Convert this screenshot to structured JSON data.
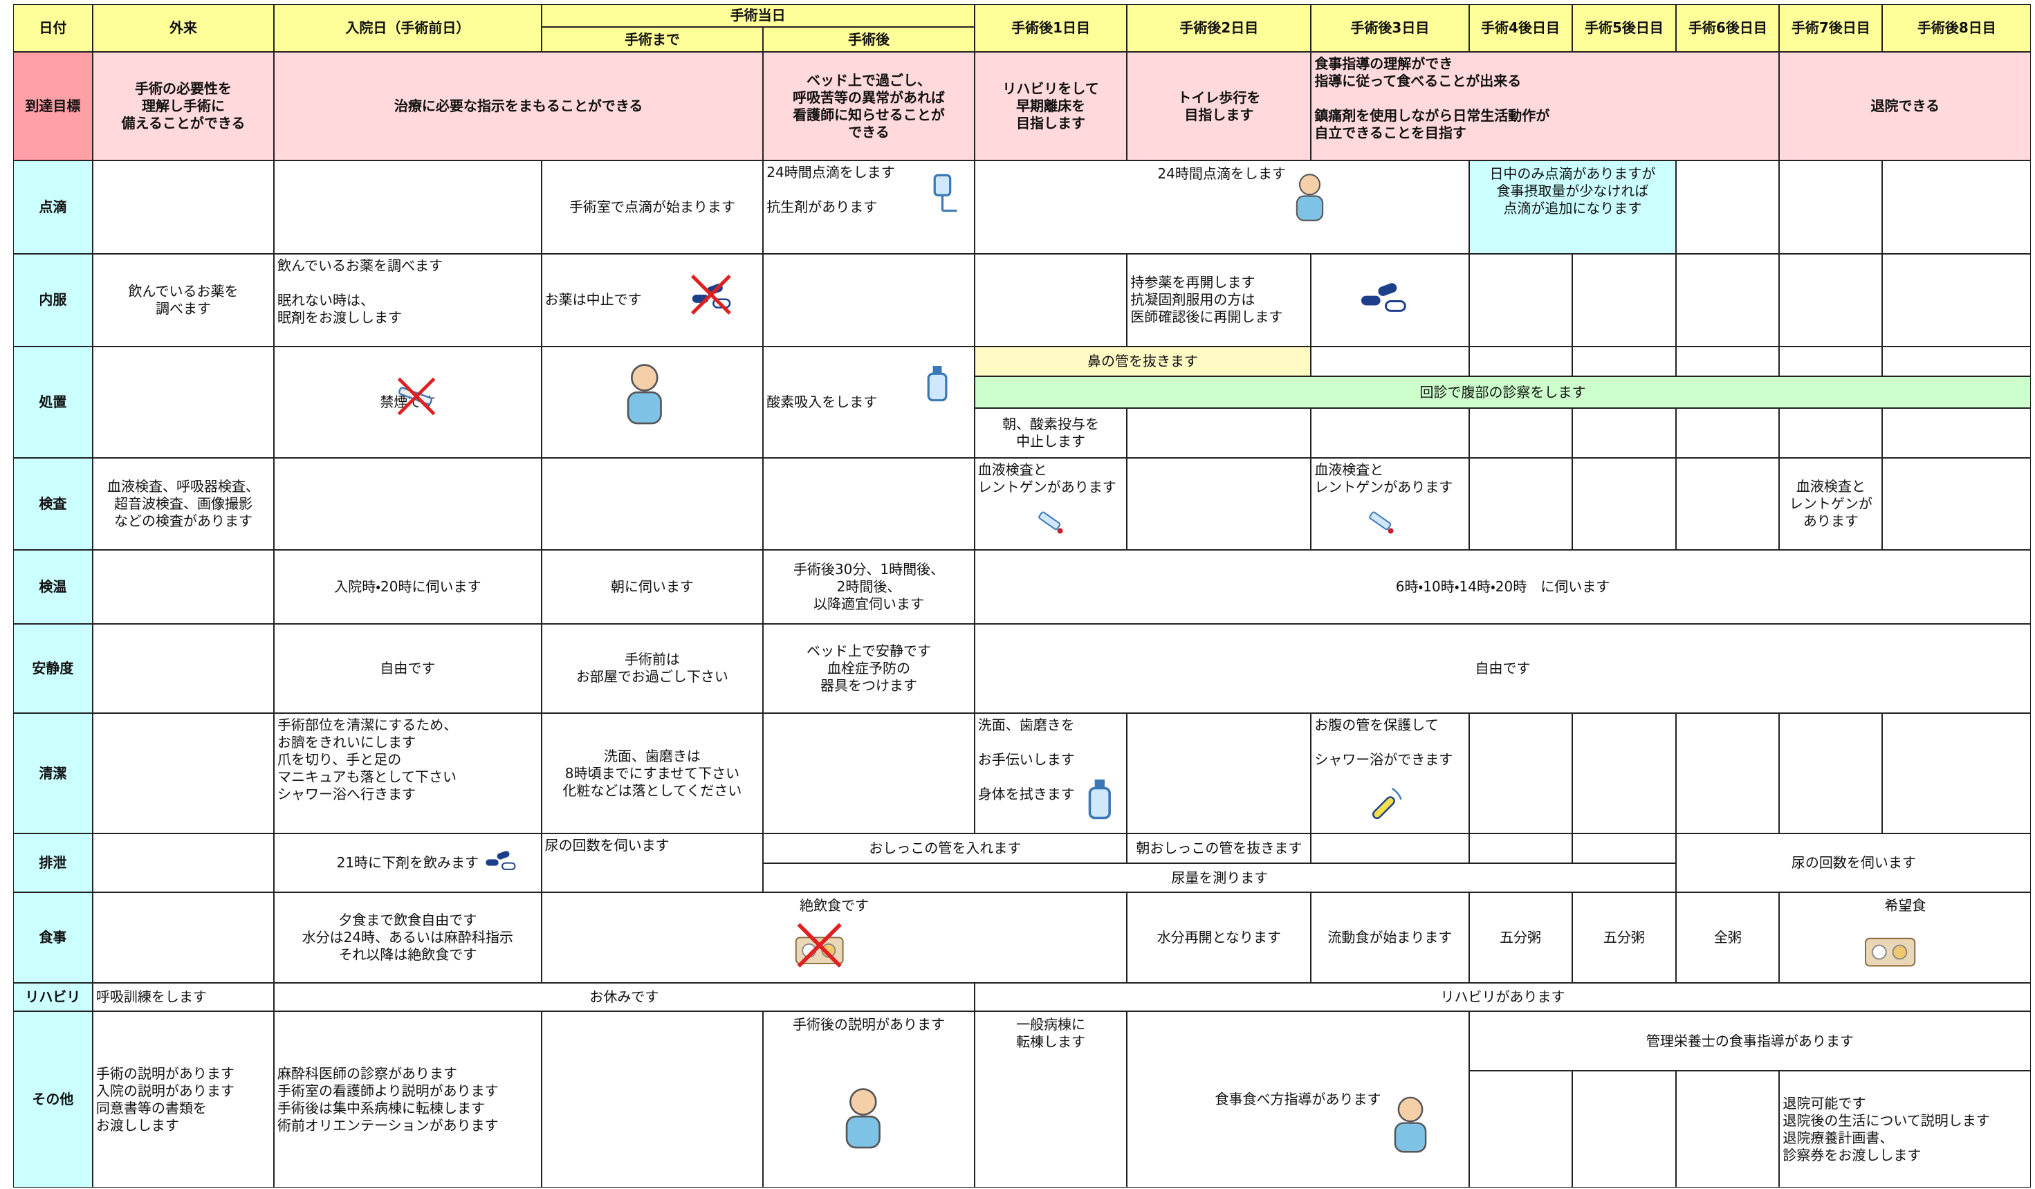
{
  "header": {
    "date": "日付",
    "outpatient": "外来",
    "admission": "入院日（手術前日）",
    "surgery_day": "手術当日",
    "before_surgery": "手術まで",
    "after_surgery": "手術後",
    "post_days": [
      "手術後1日目",
      "手術後2日目",
      "手術後3日目",
      "手術4後日目",
      "手術5後日目",
      "手術6後日目",
      "手術7後日目",
      "手術後8日目"
    ]
  },
  "rows": [
    {
      "label": "到達目標",
      "cells": [
        "手術の必要性を\n理解し手術に\n備えることができる",
        "治療に必要な指示をまもることができる",
        "ベッド上で過ごし、\n呼吸苦等の異常があれば\n看護師に知らせることが\nできる",
        "リハビリをして\n早期離床を\n目指します",
        "トイレ歩行を\n目指します",
        "食事指導の理解ができ\n指導に従って食べることが出来る\n\n鎮痛剤を使用しながら日常生活動作が\n自立できることを目指す",
        "退院できる"
      ]
    },
    {
      "label": "点滴",
      "cells": [
        "手術室で点滴が始まります",
        "24時間点滴をします\n\n抗生剤があります",
        "24時間点滴をします",
        "日中のみ点滴がありますが\n食事摂取量が少なければ\n点滴が追加になります"
      ]
    },
    {
      "label": "内服",
      "cells": [
        "飲んでいるお薬を\n調べます",
        "飲んでいるお薬を調べます\n\n眠れない時は、\n眠剤をお渡しします",
        "お薬は中止です",
        "持参薬を再開します\n抗凝固剤服用の方は\n医師確認後に再開します"
      ]
    },
    {
      "label": "処置",
      "cells": [
        "禁煙です",
        "酸素吸入をします",
        "鼻の管を抜きます",
        "回診で腹部の診察をします",
        "朝、酸素投与を\n中止します"
      ]
    },
    {
      "label": "検査",
      "cells": [
        "血液検査、呼吸器検査、\n超音波検査、画像撮影\nなどの検査があります",
        "血液検査と\nレントゲンがあります",
        "血液検査と\nレントゲンがあります",
        "血液検査と\nレントゲンが\nあります"
      ]
    },
    {
      "label": "検温",
      "cells": [
        "入院時・20時に伺います",
        "朝に伺います",
        "手術後30分、1時間後、\n2時間後、\n以降適宜伺います",
        "6時・10時・14時・20時　に伺います"
      ]
    },
    {
      "label": "安静度",
      "cells": [
        "自由です",
        "手術前は\nお部屋でお過ごし下さい",
        "ベッド上で安静です\n血栓症予防の\n器具をつけます",
        "自由です"
      ]
    },
    {
      "label": "清潔",
      "cells": [
        "手術部位を清潔にするため、\nお臍をきれいにします\n爪を切り、手と足の\nマニキュアも落として下さい\nシャワー浴へ行きます",
        "洗面、歯磨きは\n8時頃までにすませて下さい\n化粧などは落としてください",
        "洗面、歯磨きを\n\nお手伝いします\n\n身体を拭きます",
        "お腹の管を保護して\n\nシャワー浴ができます"
      ]
    },
    {
      "label": "排泄",
      "cells": [
        "21時に下剤を飲みます",
        "尿の回数を伺います",
        "おしっこの管を入れます",
        "朝おしっこの管を抜きます",
        "尿量を測ります",
        "尿の回数を伺います"
      ]
    },
    {
      "label": "食事",
      "cells": [
        "夕食まで飲食自由です\n水分は24時、あるいは麻酔科指示\nそれ以降は絶飲食です",
        "絶飲食です",
        "水分再開となります",
        "流動食が始まります",
        "五分粥",
        "五分粥",
        "全粥",
        "希望食"
      ]
    },
    {
      "label": "リハビリ",
      "cells": [
        "呼吸訓練をします",
        "お休みです",
        "リハビリがあります"
      ]
    },
    {
      "label": "その他",
      "cells": [
        "手術の説明があります\n入院の説明があります\n同意書等の書類を\nお渡しします",
        "麻酔科医師の診察があります\n手術室の看護師より説明があります\n手術後は集中系病棟に転棟します\n術前オリエンテーションがあります",
        "手術後の説明があります",
        "一般病棟に\n転棟します",
        "食事食べ方指導があります",
        "管理栄養士の食事指導があります",
        "退院可能です\n退院後の生活について説明します\n退院療養計画書、\n診察券をお渡しします"
      ]
    }
  ]
}
